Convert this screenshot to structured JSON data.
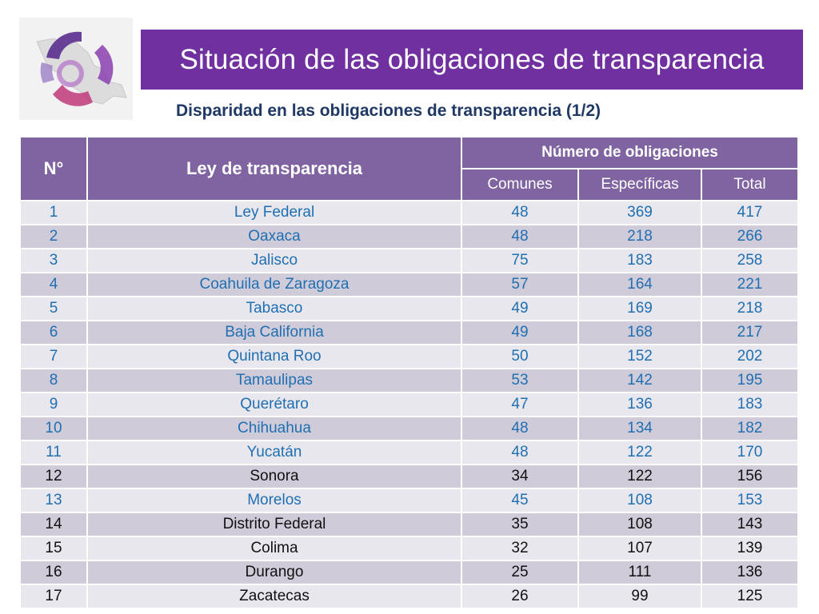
{
  "header": {
    "title": "Situación de las obligaciones de transparencia",
    "subtitle": "Disparidad en las obligaciones de transparencia (1/2)"
  },
  "logo": {
    "icon": "ifai-ring-logo-icon"
  },
  "colors": {
    "title_bar": "#7030a0",
    "table_header": "#8064a2",
    "row_light": "#e9e7ee",
    "row_dark": "#d0cbd9",
    "highlight_text": "#1f6fb2",
    "plain_text": "#111111",
    "subtitle_text": "#1f3864"
  },
  "table": {
    "columns": {
      "num": "N°",
      "law": "Ley de transparencia",
      "group": "Número de obligaciones",
      "common": "Comunes",
      "specific": "Específicas",
      "total": "Total"
    },
    "rows": [
      {
        "num": "1",
        "law": "Ley Federal",
        "common": "48",
        "specific": "369",
        "total": "417",
        "highlight": true
      },
      {
        "num": "2",
        "law": "Oaxaca",
        "common": "48",
        "specific": "218",
        "total": "266",
        "highlight": true
      },
      {
        "num": "3",
        "law": "Jalisco",
        "common": "75",
        "specific": "183",
        "total": "258",
        "highlight": true
      },
      {
        "num": "4",
        "law": "Coahuila de Zaragoza",
        "common": "57",
        "specific": "164",
        "total": "221",
        "highlight": true
      },
      {
        "num": "5",
        "law": "Tabasco",
        "common": "49",
        "specific": "169",
        "total": "218",
        "highlight": true
      },
      {
        "num": "6",
        "law": "Baja California",
        "common": "49",
        "specific": "168",
        "total": "217",
        "highlight": true
      },
      {
        "num": "7",
        "law": "Quintana Roo",
        "common": "50",
        "specific": "152",
        "total": "202",
        "highlight": true
      },
      {
        "num": "8",
        "law": "Tamaulipas",
        "common": "53",
        "specific": "142",
        "total": "195",
        "highlight": true
      },
      {
        "num": "9",
        "law": "Querétaro",
        "common": "47",
        "specific": "136",
        "total": "183",
        "highlight": true
      },
      {
        "num": "10",
        "law": "Chihuahua",
        "common": "48",
        "specific": "134",
        "total": "182",
        "highlight": true
      },
      {
        "num": "11",
        "law": "Yucatán",
        "common": "48",
        "specific": "122",
        "total": "170",
        "highlight": true
      },
      {
        "num": "12",
        "law": "Sonora",
        "common": "34",
        "specific": "122",
        "total": "156",
        "highlight": false
      },
      {
        "num": "13",
        "law": "Morelos",
        "common": "45",
        "specific": "108",
        "total": "153",
        "highlight": true
      },
      {
        "num": "14",
        "law": "Distrito Federal",
        "common": "35",
        "specific": "108",
        "total": "143",
        "highlight": false
      },
      {
        "num": "15",
        "law": "Colima",
        "common": "32",
        "specific": "107",
        "total": "139",
        "highlight": false
      },
      {
        "num": "16",
        "law": "Durango",
        "common": "25",
        "specific": "111",
        "total": "136",
        "highlight": false
      },
      {
        "num": "17",
        "law": "Zacatecas",
        "common": "26",
        "specific": "99",
        "total": "125",
        "highlight": false
      }
    ]
  }
}
